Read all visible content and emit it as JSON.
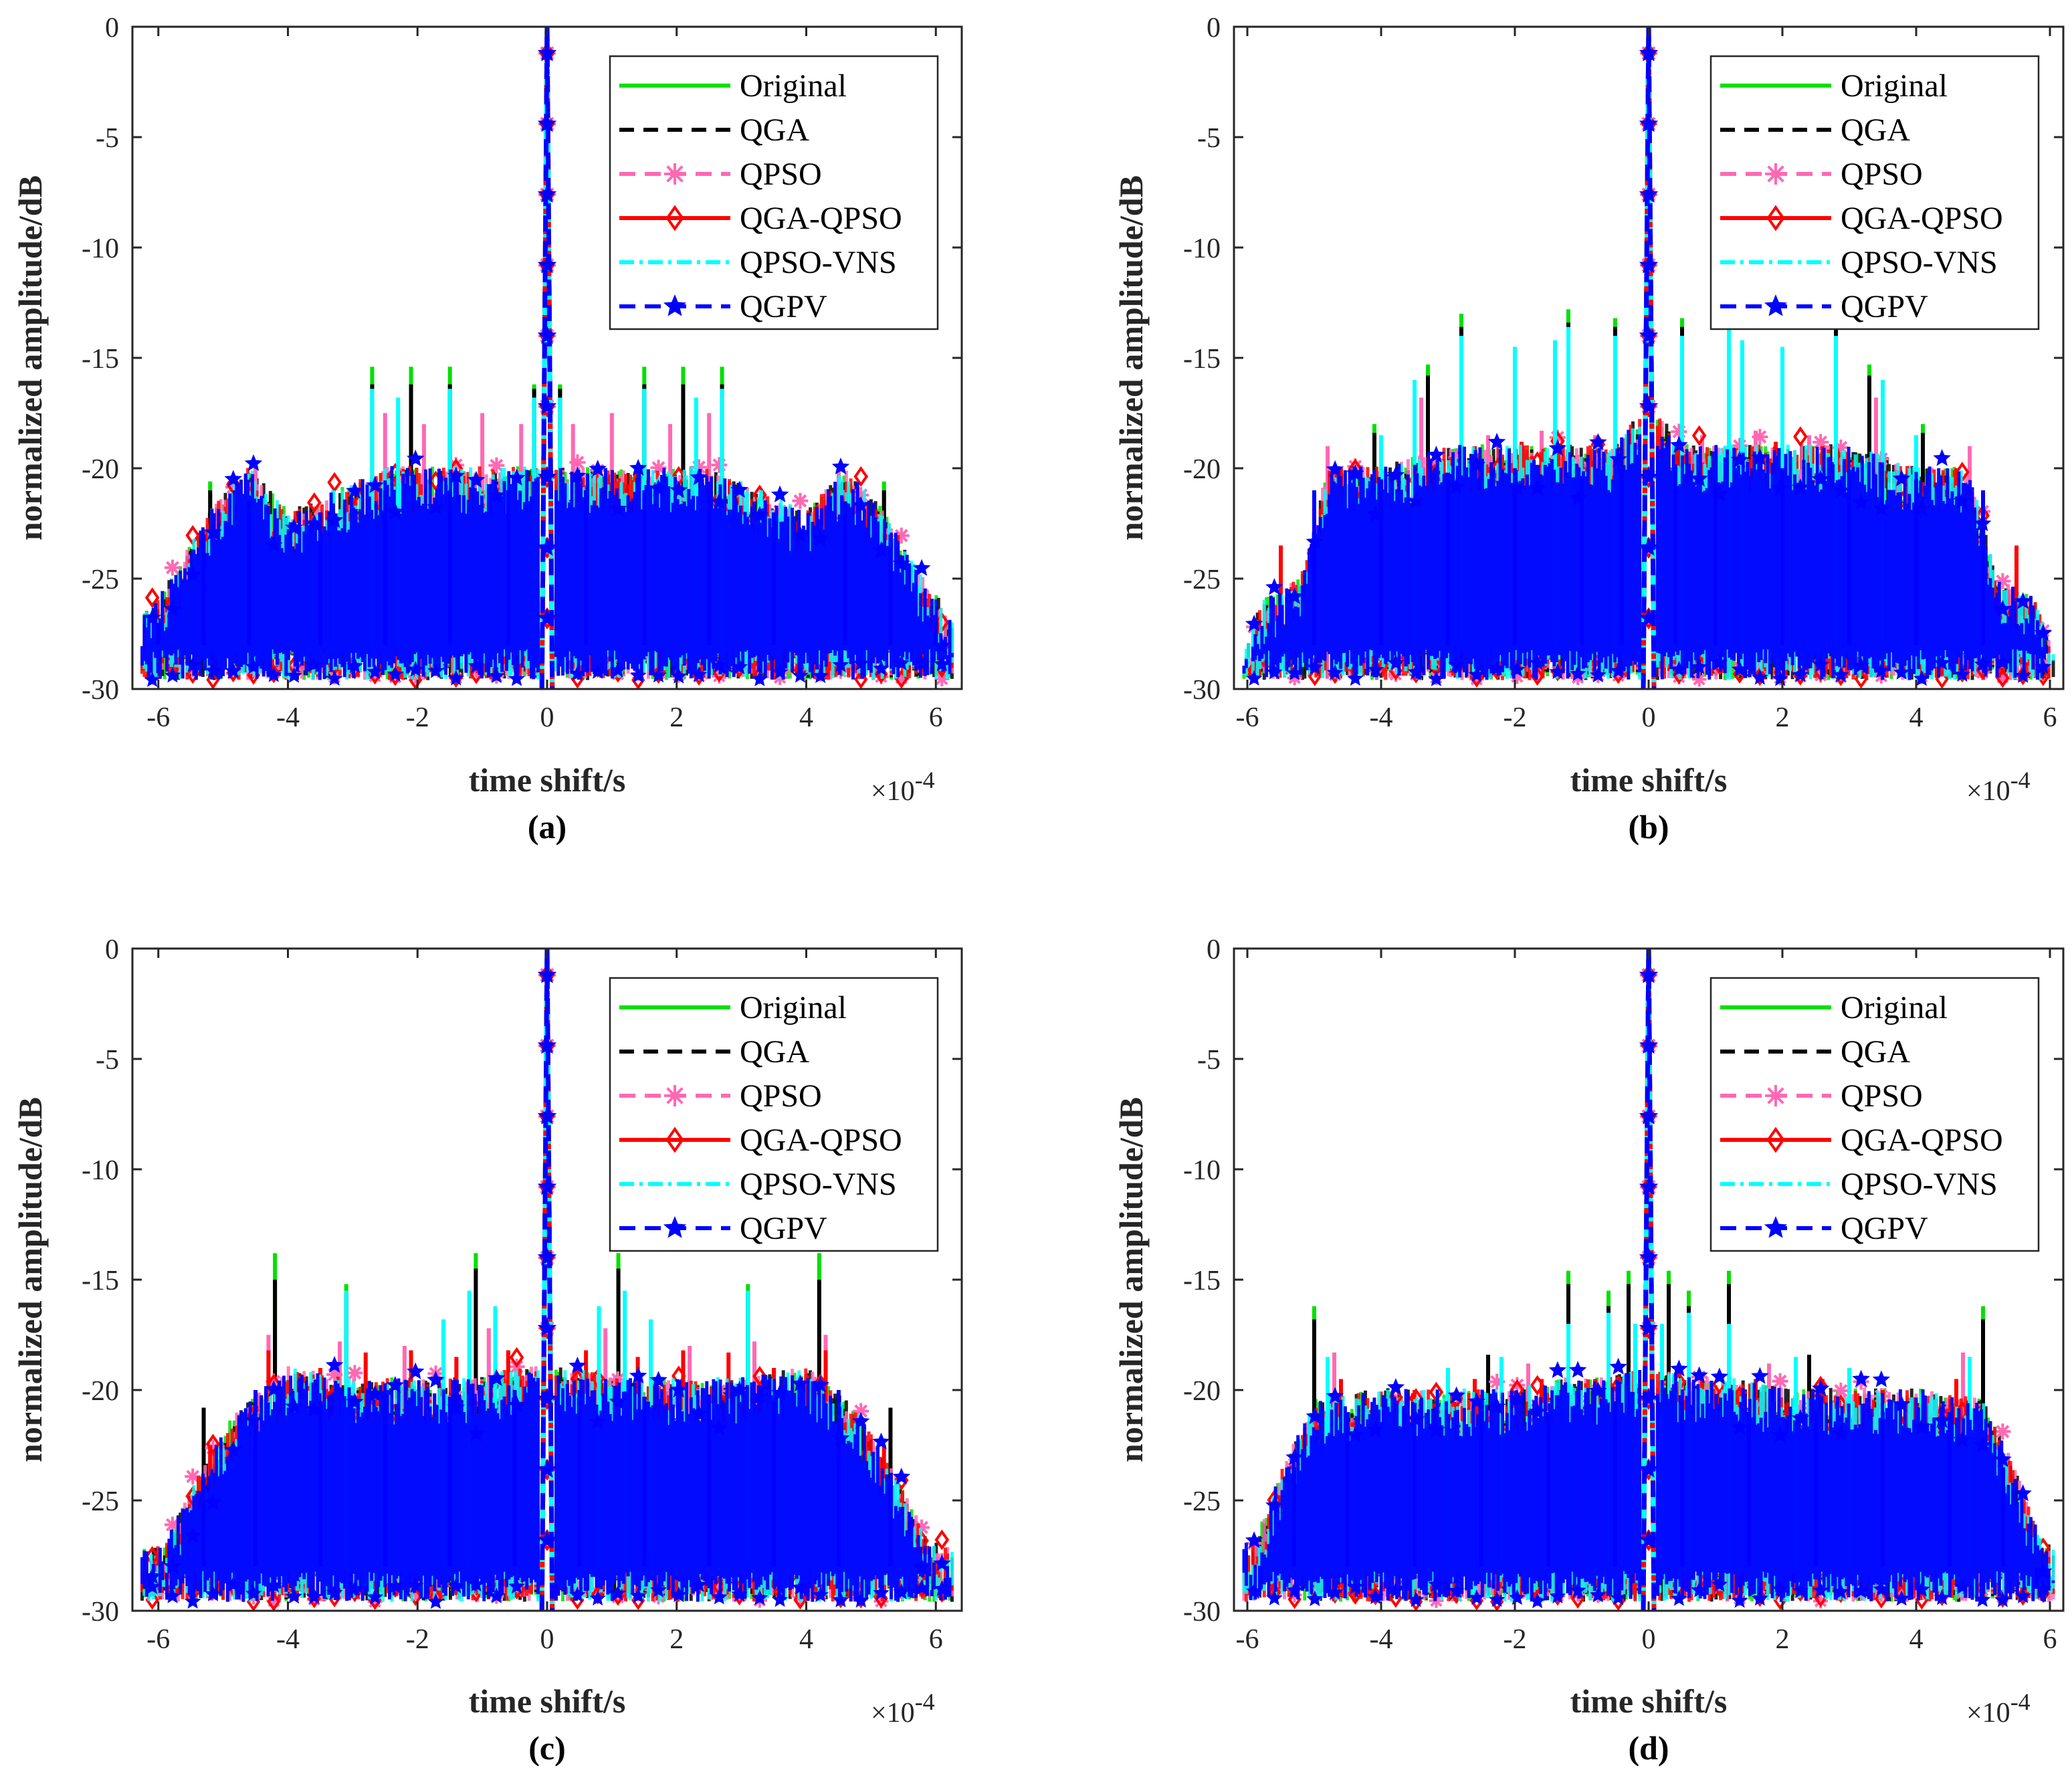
{
  "chart_data": [
    {
      "type": "line",
      "panel_label": "(a)",
      "xlabel": "time shift/s",
      "ylabel": "normalized amplitude/dB",
      "x_multiplier": "×10",
      "x_multiplier_exponent": "-4",
      "xlim": [
        -6.4,
        6.4
      ],
      "ylim": [
        -30,
        0
      ],
      "xticks": [
        "-6",
        "-4",
        "-2",
        "0",
        "2",
        "4",
        "6"
      ],
      "yticks": [
        "0",
        "-5",
        "-10",
        "-15",
        "-20",
        "-25",
        "-30"
      ],
      "legend_position": "top-right",
      "seed": 11,
      "base_envelope": {
        "x": [
          0,
          0.3,
          0.8,
          1.5,
          2.5,
          3.2,
          4.0,
          4.6,
          5.2,
          5.8,
          6.3
        ],
        "y": [
          -21,
          -21,
          -21,
          -21,
          -21,
          -22,
          -23,
          -21,
          -23,
          -26,
          -28
        ]
      },
      "series": [
        {
          "name": "Original",
          "color": "#00e000",
          "peaks": {
            "x": [
              0.2,
              1.5,
              2.1,
              2.7,
              4.5,
              5.2
            ],
            "y": [
              -16.2,
              -15.4,
              -15.4,
              -15.4,
              -20.6,
              -20.6
            ]
          }
        },
        {
          "name": "QGA",
          "color": "#000000",
          "peaks": {
            "x": [
              0.2,
              1.5,
              2.1,
              2.7,
              4.5,
              5.2
            ],
            "y": [
              -16.4,
              -16.2,
              -16.2,
              -16.2,
              -21,
              -21
            ]
          }
        },
        {
          "name": "QPSO",
          "color": "#ff69b4",
          "peaks": {
            "x": [
              0.4,
              1.0,
              1.9,
              2.5,
              4.5,
              5.7
            ],
            "y": [
              -18,
              -17.5,
              -18,
              -17.5,
              -20,
              -26
            ]
          }
        },
        {
          "name": "QGA-QPSO",
          "color": "#ff0000",
          "peaks": {
            "x": [
              0.5,
              1.5,
              2.5,
              3.5,
              4.3,
              5.0
            ],
            "y": [
              -20.8,
              -20.8,
              -20.8,
              -22,
              -23,
              -23
            ]
          }
        },
        {
          "name": "QPSO-VNS",
          "color": "#00ffff",
          "peaks": {
            "x": [
              0.2,
              1.5,
              2.3,
              2.7,
              3.3
            ],
            "y": [
              -16.8,
              -16.4,
              -16.8,
              -16.4,
              -21
            ]
          }
        },
        {
          "name": "QGPV",
          "color": "#0000ff",
          "peaks": {
            "x": [
              0.6,
              1.5,
              2.5,
              3.5,
              4.6,
              5.3,
              6.0
            ],
            "y": [
              -21,
              -21,
              -21,
              -22,
              -21.5,
              -23,
              -27
            ]
          }
        }
      ]
    },
    {
      "type": "line",
      "panel_label": "(b)",
      "xlabel": "time shift/s",
      "ylabel": "normalized amplitude/dB",
      "x_multiplier": "×10",
      "x_multiplier_exponent": "-4",
      "xlim": [
        -6.2,
        6.2
      ],
      "ylim": [
        -30,
        0
      ],
      "xticks": [
        "-6",
        "-4",
        "-2",
        "0",
        "2",
        "4",
        "6"
      ],
      "yticks": [
        "0",
        "-5",
        "-10",
        "-15",
        "-20",
        "-25",
        "-30"
      ],
      "legend_position": "top-right",
      "seed": 23,
      "base_envelope": {
        "x": [
          0,
          0.5,
          1.0,
          2.0,
          3.0,
          4.0,
          4.8,
          5.2,
          5.8,
          6.0
        ],
        "y": [
          -18,
          -20,
          -20,
          -20,
          -20,
          -21,
          -21,
          -26,
          -27,
          -29
        ]
      },
      "series": [
        {
          "name": "Original",
          "color": "#00e000",
          "peaks": {
            "x": [
              0.5,
              1.2,
              2.8,
              3.3,
              4.1,
              5.0
            ],
            "y": [
              -13.2,
              -12.8,
              -13.0,
              -15.3,
              -18.0,
              -22.0
            ]
          }
        },
        {
          "name": "QGA",
          "color": "#000000",
          "peaks": {
            "x": [
              0.5,
              1.2,
              2.8,
              3.3,
              4.1
            ],
            "y": [
              -13.6,
              -13.4,
              -13.6,
              -15.8,
              -18.4
            ]
          }
        },
        {
          "name": "QPSO",
          "color": "#ff69b4",
          "peaks": {
            "x": [
              0.8,
              1.6,
              2.4,
              3.4,
              4.8
            ],
            "y": [
              -18.5,
              -18.3,
              -18.5,
              -16.8,
              -19
            ]
          }
        },
        {
          "name": "QGA-QPSO",
          "color": "#ff0000",
          "peaks": {
            "x": [
              0.3,
              1.0,
              1.9,
              2.6,
              3.3,
              4.6,
              5.5
            ],
            "y": [
              -19,
              -19.5,
              -18.8,
              -19,
              -19.5,
              -20,
              -23.5
            ]
          }
        },
        {
          "name": "QPSO-VNS",
          "color": "#00ffff",
          "peaks": {
            "x": [
              0.5,
              1.2,
              1.4,
              2.0,
              2.8,
              3.5,
              4.0
            ],
            "y": [
              -14,
              -13.6,
              -14.2,
              -14.5,
              -14,
              -16,
              -18.5
            ]
          }
        },
        {
          "name": "QGPV",
          "color": "#0000ff",
          "peaks": {
            "x": [
              0.4,
              1.0,
              2.0,
              3.0,
              4.0,
              5.0,
              5.8
            ],
            "y": [
              -20,
              -20.5,
              -20,
              -20.2,
              -20.5,
              -21,
              -28
            ]
          }
        }
      ]
    },
    {
      "type": "line",
      "panel_label": "(c)",
      "xlabel": "time shift/s",
      "ylabel": "normalized amplitude/dB",
      "x_multiplier": "×10",
      "x_multiplier_exponent": "-4",
      "xlim": [
        -6.4,
        6.4
      ],
      "ylim": [
        -30,
        0
      ],
      "xticks": [
        "-6",
        "-4",
        "-2",
        "0",
        "2",
        "4",
        "6"
      ],
      "yticks": [
        "0",
        "-5",
        "-10",
        "-15",
        "-20",
        "-25",
        "-30"
      ],
      "legend_position": "top-right",
      "seed": 37,
      "base_envelope": {
        "x": [
          0,
          0.5,
          1.0,
          2.0,
          3.0,
          4.0,
          4.8,
          5.4,
          5.9
        ],
        "y": [
          -20,
          -20,
          -20.5,
          -20.5,
          -20.5,
          -20,
          -22,
          -25,
          -28
        ]
      },
      "series": [
        {
          "name": "Original",
          "color": "#00e000",
          "peaks": {
            "x": [
              1.1,
              3.1,
              4.2
            ],
            "y": [
              -13.8,
              -15.2,
              -13.8
            ]
          }
        },
        {
          "name": "QGA",
          "color": "#000000",
          "peaks": {
            "x": [
              1.1,
              3.1,
              4.2,
              5.3
            ],
            "y": [
              -14.5,
              -15.6,
              -15.0,
              -20.8
            ]
          }
        },
        {
          "name": "QPSO",
          "color": "#ff69b4",
          "peaks": {
            "x": [
              0.9,
              1.6,
              2.2,
              3.2,
              4.3
            ],
            "y": [
              -17.2,
              -17.5,
              -18,
              -17.8,
              -17.5
            ]
          }
        },
        {
          "name": "QGA-QPSO",
          "color": "#ff0000",
          "peaks": {
            "x": [
              0.6,
              1.4,
              2.1,
              2.8,
              3.5,
              4.3,
              5.2
            ],
            "y": [
              -18.2,
              -18.5,
              -18.2,
              -18.3,
              -19,
              -18.2,
              -22.5
            ]
          }
        },
        {
          "name": "QPSO-VNS",
          "color": "#00ffff",
          "peaks": {
            "x": [
              0.8,
              1.2,
              1.6,
              3.1,
              3.5
            ],
            "y": [
              -16.2,
              -15.5,
              -16.8,
              -15.5,
              -20
            ]
          }
        },
        {
          "name": "QGPV",
          "color": "#0000ff",
          "peaks": {
            "x": [
              0.5,
              1.5,
              2.5,
              3.5,
              4.5,
              5.3
            ],
            "y": [
              -20,
              -20.3,
              -20.2,
              -20.5,
              -20,
              -24
            ]
          }
        }
      ]
    },
    {
      "type": "line",
      "panel_label": "(d)",
      "xlabel": "time shift/s",
      "ylabel": "normalized amplitude/dB",
      "x_multiplier": "×10",
      "x_multiplier_exponent": "-4",
      "xlim": [
        -6.2,
        6.2
      ],
      "ylim": [
        -30,
        0
      ],
      "xticks": [
        "-6",
        "-4",
        "-2",
        "0",
        "2",
        "4",
        "6"
      ],
      "yticks": [
        "0",
        "-5",
        "-10",
        "-15",
        "-20",
        "-25",
        "-30"
      ],
      "legend_position": "top-right",
      "seed": 51,
      "base_envelope": {
        "x": [
          0,
          0.6,
          1.2,
          2.0,
          3.0,
          4.0,
          5.0,
          5.4,
          5.9
        ],
        "y": [
          -20,
          -20.5,
          -20.5,
          -21,
          -21,
          -21,
          -21.5,
          -24,
          -28
        ]
      },
      "series": [
        {
          "name": "Original",
          "color": "#00e000",
          "peaks": {
            "x": [
              0.3,
              0.6,
              1.2,
              5.0
            ],
            "y": [
              -14.6,
              -15.5,
              -14.6,
              -16.2
            ]
          }
        },
        {
          "name": "QGA",
          "color": "#000000",
          "peaks": {
            "x": [
              0.3,
              0.6,
              1.2,
              5.0,
              2.4
            ],
            "y": [
              -15.2,
              -16.2,
              -15.2,
              -16.8,
              -18.4
            ]
          }
        },
        {
          "name": "QPSO",
          "color": "#ff69b4",
          "peaks": {
            "x": [
              0.6,
              1.8,
              3.0,
              4.7
            ],
            "y": [
              -18.5,
              -18.8,
              -20.5,
              -18.3
            ]
          }
        },
        {
          "name": "QGA-QPSO",
          "color": "#ff0000",
          "peaks": {
            "x": [
              0.8,
              1.6,
              2.6,
              3.5,
              4.6,
              5.6
            ],
            "y": [
              -19.5,
              -19.5,
              -19.5,
              -20,
              -19.5,
              -26
            ]
          }
        },
        {
          "name": "QPSO-VNS",
          "color": "#00ffff",
          "peaks": {
            "x": [
              0.2,
              0.6,
              1.2,
              2.2,
              3.0,
              4.8
            ],
            "y": [
              -17,
              -16.5,
              -17,
              -18.5,
              -19,
              -18.5
            ]
          }
        },
        {
          "name": "QGPV",
          "color": "#0000ff",
          "peaks": {
            "x": [
              0.5,
              1.5,
              2.5,
              3.5,
              4.5,
              5.3,
              5.8
            ],
            "y": [
              -20.5,
              -21,
              -21,
              -21,
              -21,
              -23.5,
              -29
            ]
          }
        }
      ]
    }
  ]
}
